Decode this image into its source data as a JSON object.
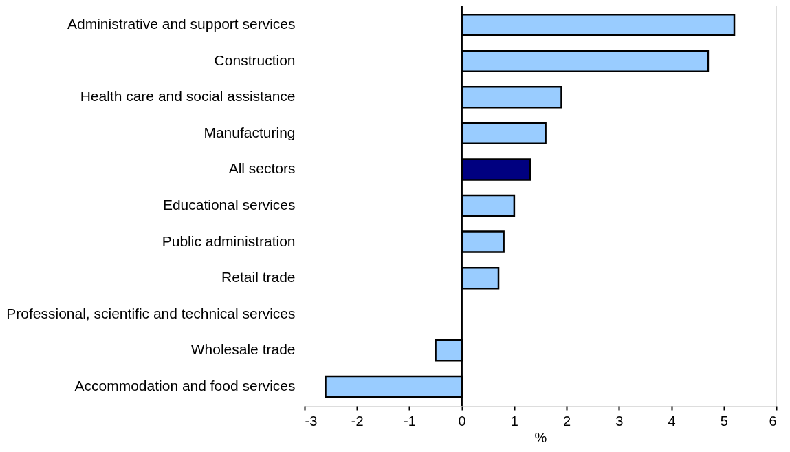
{
  "chart_data": {
    "type": "bar",
    "orientation": "horizontal",
    "xlabel": "%",
    "categories": [
      "Administrative and support services",
      "Construction",
      "Health care and social assistance",
      "Manufacturing",
      "All sectors",
      "Educational services",
      "Public administration",
      "Retail trade",
      "Professional, scientific and technical services",
      "Wholesale trade",
      "Accommodation and food services"
    ],
    "values": [
      5.2,
      4.7,
      1.9,
      1.6,
      1.3,
      1.0,
      0.8,
      0.7,
      0,
      -0.5,
      -2.6
    ],
    "colors": [
      "#99ccff",
      "#99ccff",
      "#99ccff",
      "#99ccff",
      "#000080",
      "#99ccff",
      "#99ccff",
      "#99ccff",
      "#99ccff",
      "#99ccff",
      "#99ccff"
    ],
    "xlim": [
      -3,
      6
    ],
    "xticks": [
      -3,
      -2,
      -1,
      0,
      1,
      2,
      3,
      4,
      5,
      6
    ],
    "ref_lines": [
      {
        "axis": "x",
        "value": 0,
        "color": "#000000"
      }
    ],
    "grid": false
  }
}
